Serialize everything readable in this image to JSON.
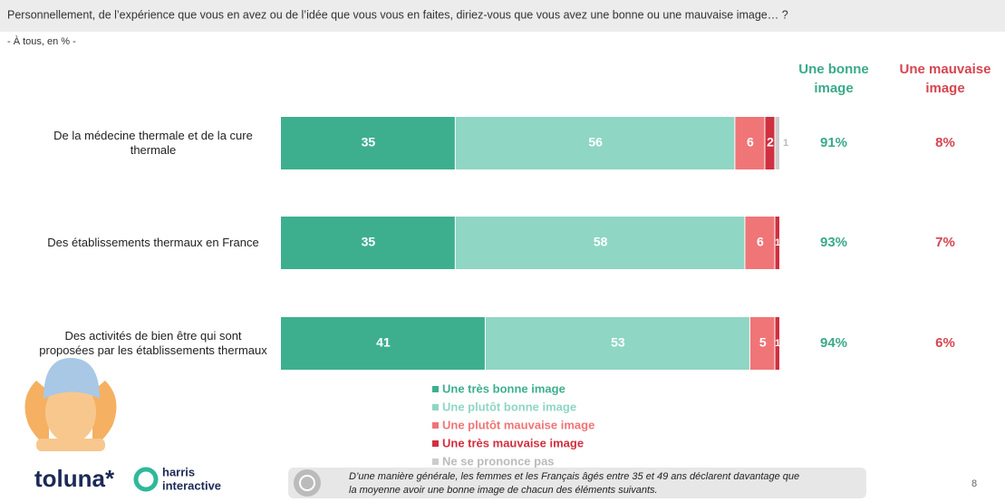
{
  "header": {
    "question": "Personnellement, de l’expérience que vous en avez ou de l’idée que vous vous en faites, diriez-vous que vous avez une bonne ou une mauvaise image… ?",
    "base": "- À tous, en % -"
  },
  "chart_data": {
    "type": "stacked-bar",
    "orientation": "horizontal",
    "categories": [
      "De la médecine thermale et de la cure thermale",
      "Des établissements thermaux en France",
      "Des activités de bien être qui sont proposées par les établissements thermaux"
    ],
    "xlim": [
      0,
      100
    ],
    "series": [
      {
        "name": "Une très bonne image",
        "color": "#3daf8f",
        "values": [
          35,
          35,
          41
        ]
      },
      {
        "name": "Une plutôt bonne image",
        "color": "#8fd6c4",
        "values": [
          56,
          58,
          53
        ]
      },
      {
        "name": "Une plutôt mauvaise image",
        "color": "#f07577",
        "values": [
          6,
          6,
          5
        ]
      },
      {
        "name": "Une très mauvaise image",
        "color": "#d0303f",
        "values": [
          2,
          1,
          1
        ]
      },
      {
        "name": "Ne se prononce pas",
        "color": "#cccccc",
        "values": [
          1,
          null,
          null
        ]
      }
    ],
    "summary": [
      {
        "name": "Une bonne image",
        "color": "#3aaa8a",
        "values": [
          91,
          93,
          94
        ],
        "value_labels": [
          "91%",
          "93%",
          "94%"
        ]
      },
      {
        "name": "Une mauvaise image",
        "color": "#d64550",
        "values": [
          8,
          7,
          6
        ],
        "value_labels": [
          "8%",
          "7%",
          "6%"
        ]
      }
    ]
  },
  "footer": {
    "logo1": "toluna*",
    "logo2": [
      "harris",
      "interactive"
    ],
    "note": [
      "D’une manière générale, les femmes et les Français âgés entre 35 et 49 ans déclarent davantage que",
      "la moyenne avoir une bonne image de chacun des éléments suivants."
    ],
    "page": "8"
  }
}
